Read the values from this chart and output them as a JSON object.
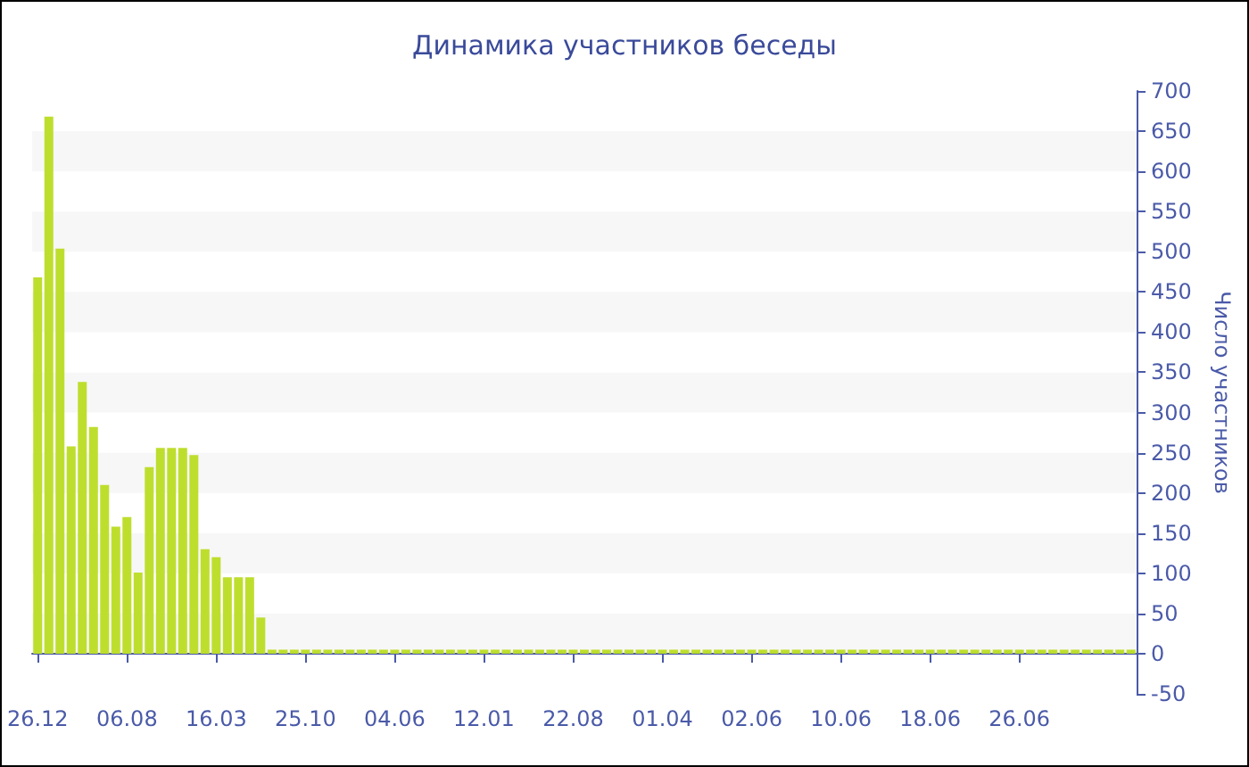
{
  "chart_data": {
    "type": "bar",
    "title": "Динамика участников беседы",
    "ylabel": "Число участников",
    "categories": [
      "26.12",
      null,
      null,
      null,
      null,
      null,
      null,
      null,
      "06.08",
      null,
      null,
      null,
      null,
      null,
      null,
      null,
      "16.03",
      null,
      null,
      null,
      null,
      null,
      null,
      null,
      "25.10",
      null,
      null,
      null,
      null,
      null,
      null,
      null,
      "04.06",
      null,
      null,
      null,
      null,
      null,
      null,
      null,
      "12.01",
      null,
      null,
      null,
      null,
      null,
      null,
      null,
      "22.08",
      null,
      null,
      null,
      null,
      null,
      null,
      null,
      "01.04",
      null,
      null,
      null,
      null,
      null,
      null,
      null,
      "02.06",
      null,
      null,
      null,
      null,
      null,
      null,
      null,
      "10.06",
      null,
      null,
      null,
      null,
      null,
      null,
      null,
      "18.06",
      null,
      null,
      null,
      null,
      null,
      null,
      null,
      "26.06",
      null,
      null,
      null,
      null,
      null,
      null,
      null,
      null,
      null,
      null
    ],
    "values": [
      468,
      668,
      504,
      258,
      338,
      282,
      210,
      158,
      170,
      101,
      232,
      256,
      256,
      256,
      247,
      130,
      120,
      95,
      95,
      95,
      45,
      5,
      5,
      5,
      5,
      5,
      5,
      5,
      5,
      5,
      5,
      5,
      5,
      5,
      5,
      5,
      5,
      5,
      5,
      5,
      5,
      5,
      5,
      5,
      5,
      5,
      5,
      5,
      5,
      5,
      5,
      5,
      5,
      5,
      5,
      5,
      5,
      5,
      5,
      5,
      5,
      5,
      5,
      5,
      5,
      5,
      5,
      5,
      5,
      5,
      5,
      5,
      5,
      5,
      5,
      5,
      5,
      5,
      5,
      5,
      5,
      5,
      5,
      5,
      5,
      5,
      5,
      5,
      5,
      5,
      5,
      5,
      5,
      5,
      5,
      5,
      5,
      5,
      5
    ],
    "color": "#bede2e",
    "ylim": [
      -50,
      700
    ],
    "yticks": [
      -50,
      0,
      50,
      100,
      150,
      200,
      250,
      300,
      350,
      400,
      450,
      500,
      550,
      600,
      650,
      700
    ]
  }
}
